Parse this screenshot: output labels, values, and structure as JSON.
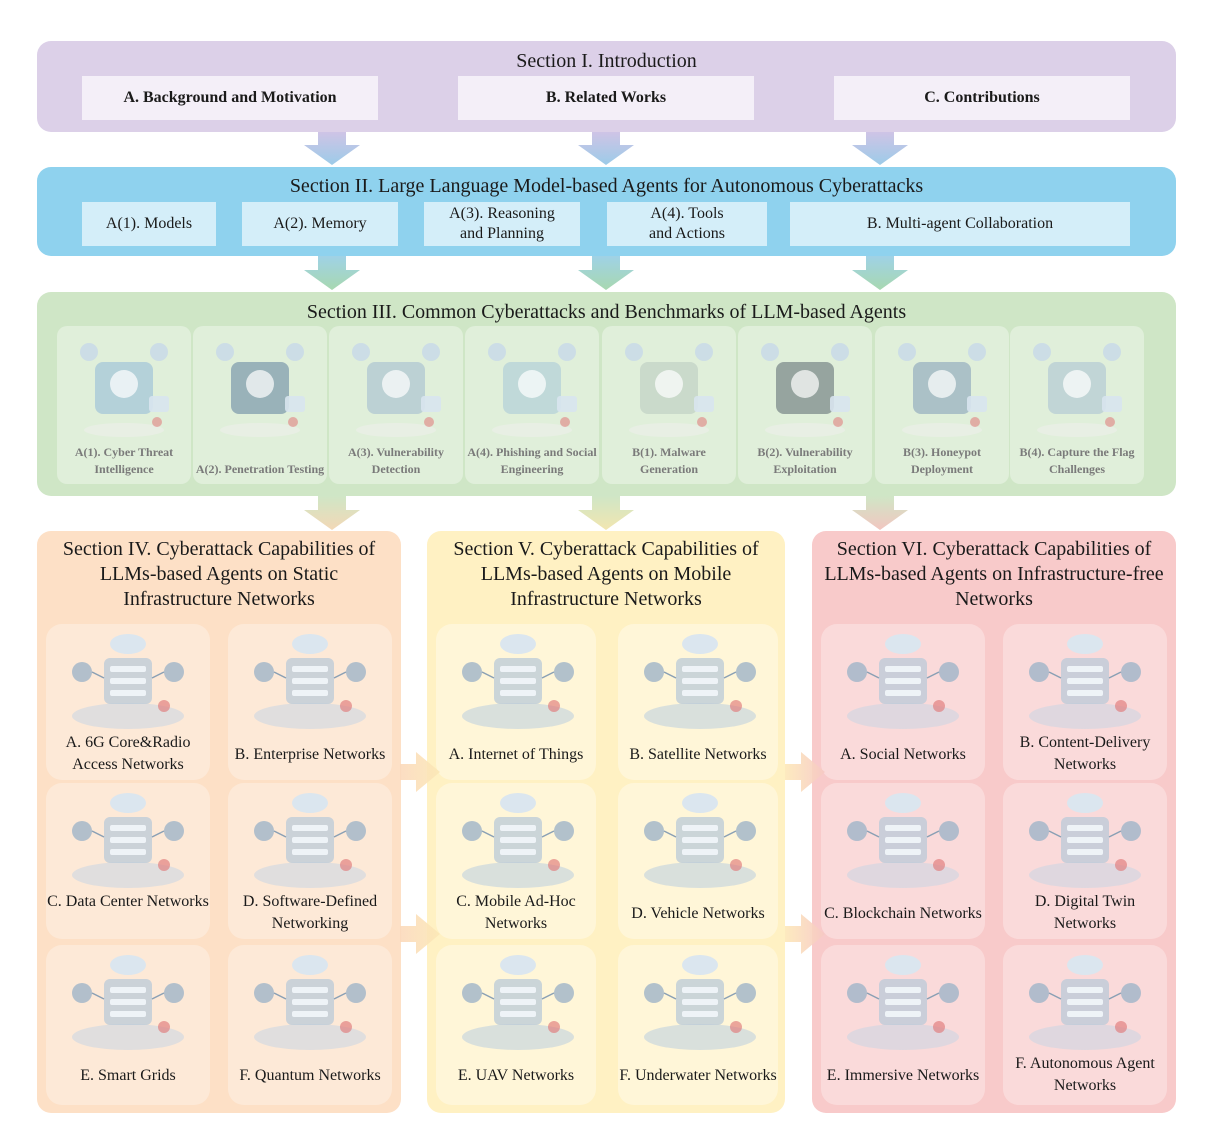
{
  "section1": {
    "title": "Section I. Introduction",
    "items": [
      "A. Background and Motivation",
      "B. Related Works",
      "C. Contributions"
    ]
  },
  "section2": {
    "title": "Section II. Large Language Model-based Agents for Autonomous Cyberattacks",
    "items": [
      "A(1). Models",
      "A(2). Memory",
      "A(3). Reasoning and Planning",
      "A(4). Tools and Actions",
      "B. Multi-agent Collaboration"
    ]
  },
  "section3": {
    "title": "Section III. Common Cyberattacks and Benchmarks of LLM-based Agents",
    "items": [
      {
        "label": "A(1). Cyber Threat Intelligence",
        "icon": "robot-threat-icon"
      },
      {
        "label": "A(2). Penetration Testing",
        "icon": "laptop-magnifier-icon"
      },
      {
        "label": "A(3). Vulnerability Detection",
        "icon": "shield-scan-icon"
      },
      {
        "label": "A(4). Phishing and Social Engineering",
        "icon": "phishing-icon"
      },
      {
        "label": "B(1). Malware Generation",
        "icon": "malware-cycle-icon"
      },
      {
        "label": "B(2). Vulnerability Exploitation",
        "icon": "exploit-code-icon"
      },
      {
        "label": "B(3). Honeypot Deployment",
        "icon": "honeypot-server-icon"
      },
      {
        "label": "B(4). Capture the Flag Challenges",
        "icon": "ctf-flag-icon"
      }
    ]
  },
  "section4": {
    "title": "Section IV. Cyberattack Capabilities of LLMs-based Agents on Static Infrastructure Networks",
    "items": [
      {
        "label": "A. 6G Core&Radio Access Networks",
        "icon": "6g-core-icon"
      },
      {
        "label": "B. Enterprise Networks",
        "icon": "enterprise-icon"
      },
      {
        "label": "C. Data Center Networks",
        "icon": "data-center-icon"
      },
      {
        "label": "D. Software-Defined Networking",
        "icon": "sdn-icon"
      },
      {
        "label": "E. Smart Grids",
        "icon": "smart-grid-icon"
      },
      {
        "label": "F. Quantum Networks",
        "icon": "quantum-icon"
      }
    ]
  },
  "section5": {
    "title": "Section V. Cyberattack Capabilities of LLMs-based Agents on Mobile Infrastructure Networks",
    "items": [
      {
        "label": "A. Internet of Things",
        "icon": "iot-icon"
      },
      {
        "label": "B. Satellite Networks",
        "icon": "satellite-icon"
      },
      {
        "label": "C. Mobile Ad-Hoc Networks",
        "icon": "manet-icon"
      },
      {
        "label": "D. Vehicle Networks",
        "icon": "vehicle-icon"
      },
      {
        "label": "E. UAV Networks",
        "icon": "uav-icon"
      },
      {
        "label": "F. Underwater Networks",
        "icon": "underwater-icon"
      }
    ]
  },
  "section6": {
    "title": "Section VI. Cyberattack Capabilities of LLMs-based Agents on Infrastructure-free Networks",
    "items": [
      {
        "label": "A. Social Networks",
        "icon": "social-icon"
      },
      {
        "label": "B. Content-Delivery Networks",
        "icon": "cdn-icon"
      },
      {
        "label": "C. Blockchain Networks",
        "icon": "blockchain-icon"
      },
      {
        "label": "D. Digital Twin Networks",
        "icon": "digital-twin-icon"
      },
      {
        "label": "E. Immersive Networks",
        "icon": "immersive-icon"
      },
      {
        "label": "F. Autonomous Agent Networks",
        "icon": "agent-network-icon"
      }
    ]
  },
  "colors": {
    "section1": "#dcd0e8",
    "section2": "#8fd2ee",
    "section3": "#cfe6c6",
    "section4": "#fde0c6",
    "section5": "#fff1c3",
    "section6": "#f8caca"
  }
}
